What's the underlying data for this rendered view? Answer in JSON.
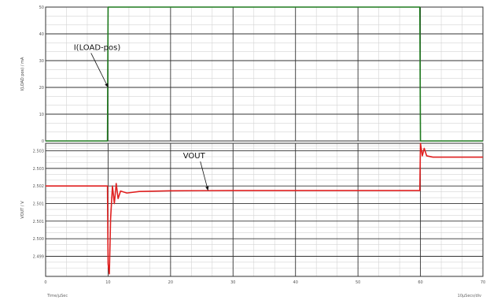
{
  "chart_data": [
    {
      "type": "line",
      "ylabel": "I(LOAD:pos) / mA",
      "ylim": [
        0,
        50
      ],
      "xlim": [
        0,
        70
      ],
      "x_ticks": [
        0,
        10,
        20,
        30,
        40,
        50,
        60,
        70
      ],
      "y_ticks": [
        {
          "v": 0,
          "label": "0"
        },
        {
          "v": 10,
          "label": "10"
        },
        {
          "v": 20,
          "label": "20"
        },
        {
          "v": 30,
          "label": "30"
        },
        {
          "v": 40,
          "label": "40"
        },
        {
          "v": 50,
          "label": "50"
        }
      ],
      "grid": true,
      "series": [
        {
          "name": "I(LOAD-pos)",
          "color": "#1e7a1e",
          "points": [
            [
              0,
              0
            ],
            [
              9.9,
              0
            ],
            [
              10,
              50
            ],
            [
              59.9,
              50
            ],
            [
              60,
              0
            ],
            [
              70,
              0
            ]
          ]
        }
      ],
      "annotations": [
        {
          "text": "I(LOAD-pos)",
          "x": 4.5,
          "y": 34,
          "arrow_to": [
            10,
            20
          ]
        }
      ]
    },
    {
      "type": "line",
      "ylabel": "VOUT / V",
      "ylim": [
        2.4985,
        2.5038
      ],
      "xlim": [
        0,
        70
      ],
      "x_ticks": [
        {
          "v": 0,
          "label": "0"
        },
        {
          "v": 10,
          "label": "10"
        },
        {
          "v": 20,
          "label": "20"
        },
        {
          "v": 30,
          "label": "30"
        },
        {
          "v": 40,
          "label": "40"
        },
        {
          "v": 50,
          "label": "50"
        },
        {
          "v": 60,
          "label": "60"
        },
        {
          "v": 70,
          "label": "70"
        }
      ],
      "y_ticks": [
        {
          "v": 2.5035,
          "label": "2.503"
        },
        {
          "v": 2.5028,
          "label": "2.503"
        },
        {
          "v": 2.5021,
          "label": "2.502"
        },
        {
          "v": 2.5014,
          "label": "2.501"
        },
        {
          "v": 2.5007,
          "label": "2.501"
        },
        {
          "v": 2.5,
          "label": "2.500"
        },
        {
          "v": 2.4993,
          "label": "2.499"
        }
      ],
      "grid": true,
      "series": [
        {
          "name": "VOUT",
          "color": "#e02020",
          "points": [
            [
              0,
              2.5021
            ],
            [
              9.9,
              2.5021
            ],
            [
              10.0,
              2.499
            ],
            [
              10.2,
              2.4986
            ],
            [
              10.4,
              2.5008
            ],
            [
              10.7,
              2.5021
            ],
            [
              11.0,
              2.5014
            ],
            [
              11.3,
              2.5022
            ],
            [
              11.6,
              2.5016
            ],
            [
              12.0,
              2.5019
            ],
            [
              13.0,
              2.50182
            ],
            [
              15.0,
              2.50188
            ],
            [
              20.0,
              2.50191
            ],
            [
              30.0,
              2.50192
            ],
            [
              59.9,
              2.50192
            ],
            [
              60.0,
              2.5038
            ],
            [
              60.3,
              2.5033
            ],
            [
              60.6,
              2.5036
            ],
            [
              61.0,
              2.5033
            ],
            [
              62.0,
              2.50325
            ],
            [
              70.0,
              2.50325
            ]
          ]
        }
      ],
      "annotations": [
        {
          "text": "VOUT",
          "x": 22,
          "y": 2.5032,
          "arrow_to": [
            26,
            2.50192
          ]
        }
      ]
    }
  ],
  "footer": {
    "left": "Time/µSec",
    "right": "10µSecs/div"
  }
}
